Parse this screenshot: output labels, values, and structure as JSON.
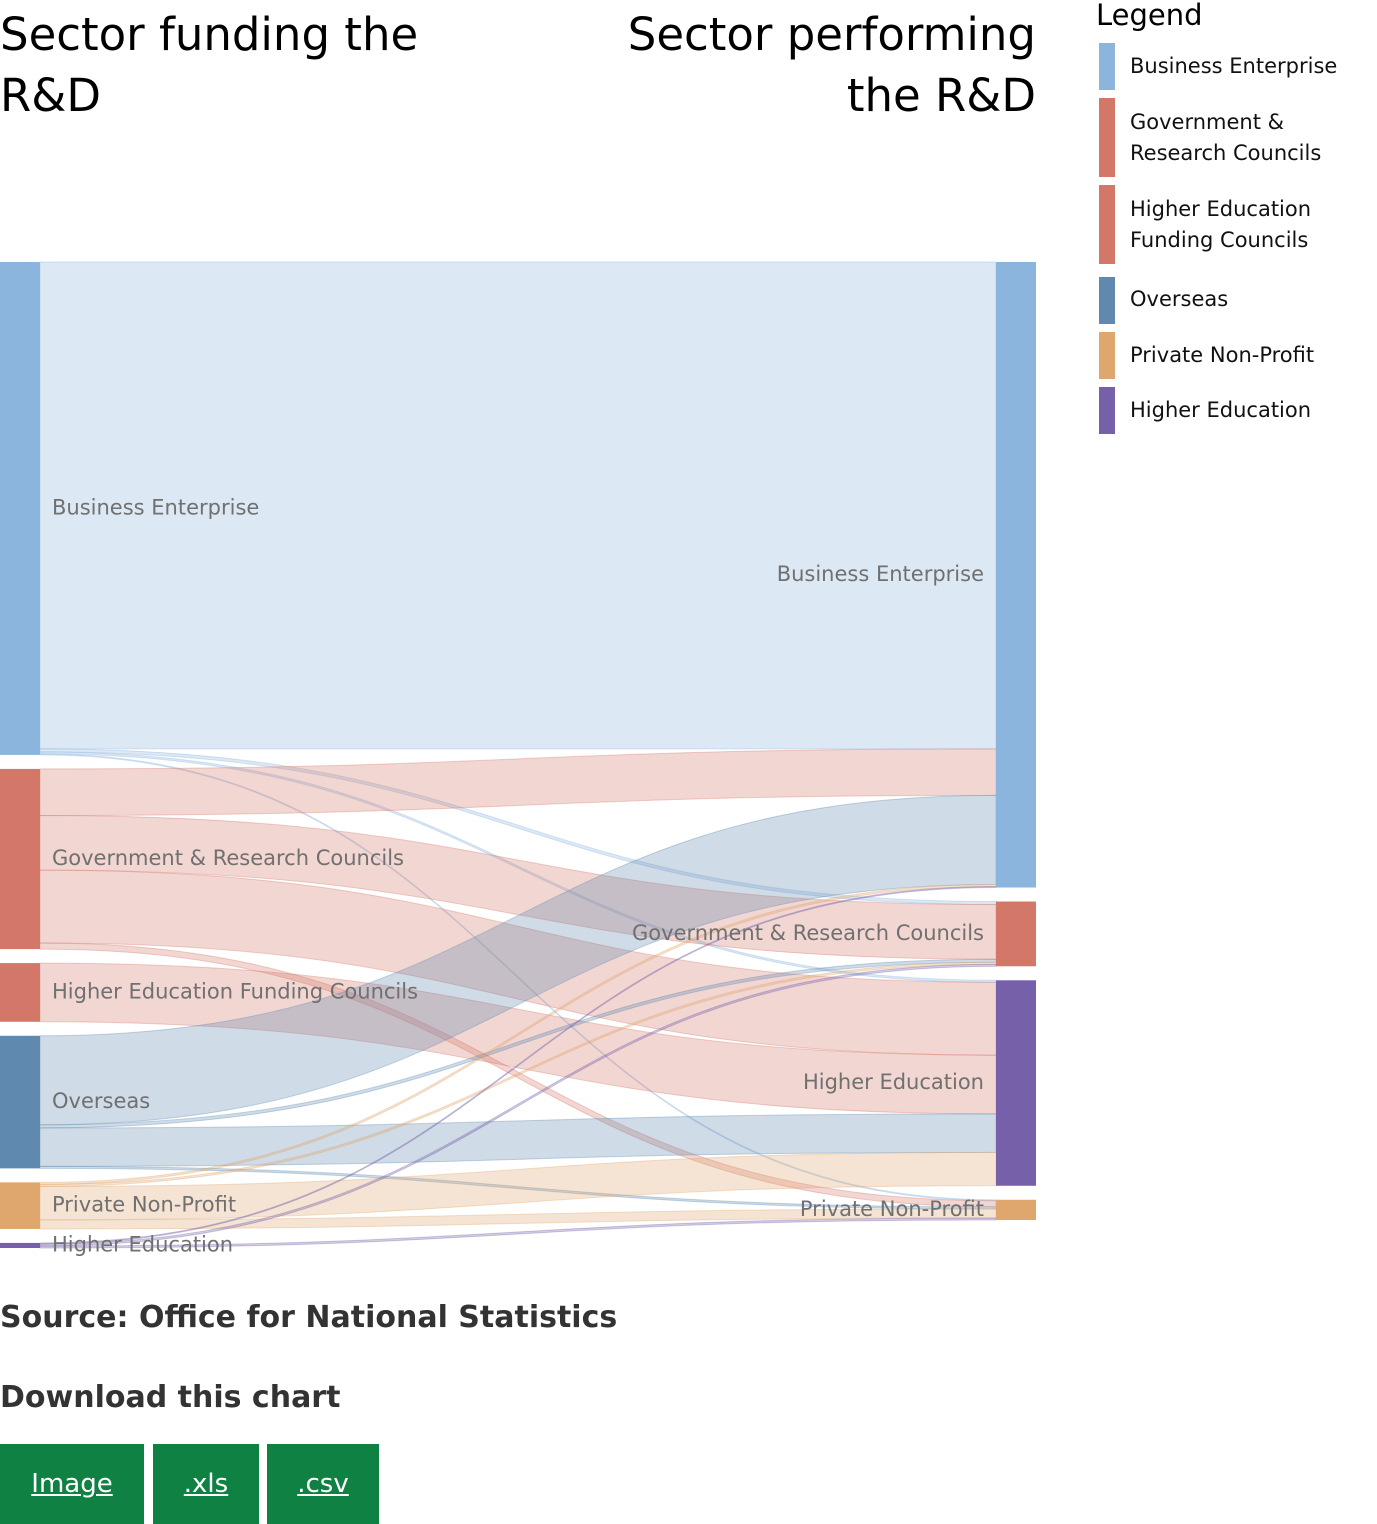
{
  "headings": {
    "left": "Sector funding the R&D",
    "right": "Sector performing the R&D"
  },
  "legend": {
    "title": "Legend",
    "items": [
      {
        "label": "Business Enterprise",
        "color": "#8bb5dc"
      },
      {
        "label": "Government & Research Councils",
        "color": "#d37869"
      },
      {
        "label": "Higher Education Funding Councils",
        "color": "#d37869"
      },
      {
        "label": "Overseas",
        "color": "#5f89af"
      },
      {
        "label": "Private Non-Profit",
        "color": "#dfa76d"
      },
      {
        "label": "Higher Education",
        "color": "#7660a9"
      }
    ]
  },
  "chart_data": {
    "type": "sankey",
    "sources": [
      {
        "label": "Business Enterprise",
        "color": "#8bb5dc"
      },
      {
        "label": "Government & Research Councils",
        "color": "#d37869"
      },
      {
        "label": "Higher Education Funding Councils",
        "color": "#d37869"
      },
      {
        "label": "Overseas",
        "color": "#5f89af"
      },
      {
        "label": "Private Non-Profit",
        "color": "#dfa76d"
      },
      {
        "label": "Higher Education",
        "color": "#7660a9"
      }
    ],
    "targets": [
      {
        "label": "Business Enterprise",
        "color": "#8bb5dc"
      },
      {
        "label": "Government & Research Councils",
        "color": "#d37869"
      },
      {
        "label": "Higher Education",
        "color": "#7660a9"
      },
      {
        "label": "Private Non-Profit",
        "color": "#dfa76d"
      }
    ],
    "links": [
      {
        "source": 0,
        "target": 0,
        "value": 481
      },
      {
        "source": 0,
        "target": 1,
        "value": 3
      },
      {
        "source": 0,
        "target": 2,
        "value": 2
      },
      {
        "source": 0,
        "target": 3,
        "value": 1
      },
      {
        "source": 1,
        "target": 0,
        "value": 46
      },
      {
        "source": 1,
        "target": 1,
        "value": 54
      },
      {
        "source": 1,
        "target": 2,
        "value": 72
      },
      {
        "source": 1,
        "target": 3,
        "value": 6
      },
      {
        "source": 2,
        "target": 2,
        "value": 58
      },
      {
        "source": 3,
        "target": 0,
        "value": 88
      },
      {
        "source": 3,
        "target": 1,
        "value": 3
      },
      {
        "source": 3,
        "target": 2,
        "value": 38
      },
      {
        "source": 3,
        "target": 3,
        "value": 2
      },
      {
        "source": 4,
        "target": 0,
        "value": 2
      },
      {
        "source": 4,
        "target": 1,
        "value": 2
      },
      {
        "source": 4,
        "target": 2,
        "value": 33
      },
      {
        "source": 4,
        "target": 3,
        "value": 9
      },
      {
        "source": 5,
        "target": 0,
        "value": 1
      },
      {
        "source": 5,
        "target": 1,
        "value": 2
      },
      {
        "source": 5,
        "target": 3,
        "value": 2
      }
    ]
  },
  "footer": {
    "source": "Source: Office for National Statistics",
    "download_title": "Download this chart",
    "buttons": [
      {
        "label": "Image"
      },
      {
        "label": ".xls"
      },
      {
        "label": ".csv"
      }
    ]
  }
}
